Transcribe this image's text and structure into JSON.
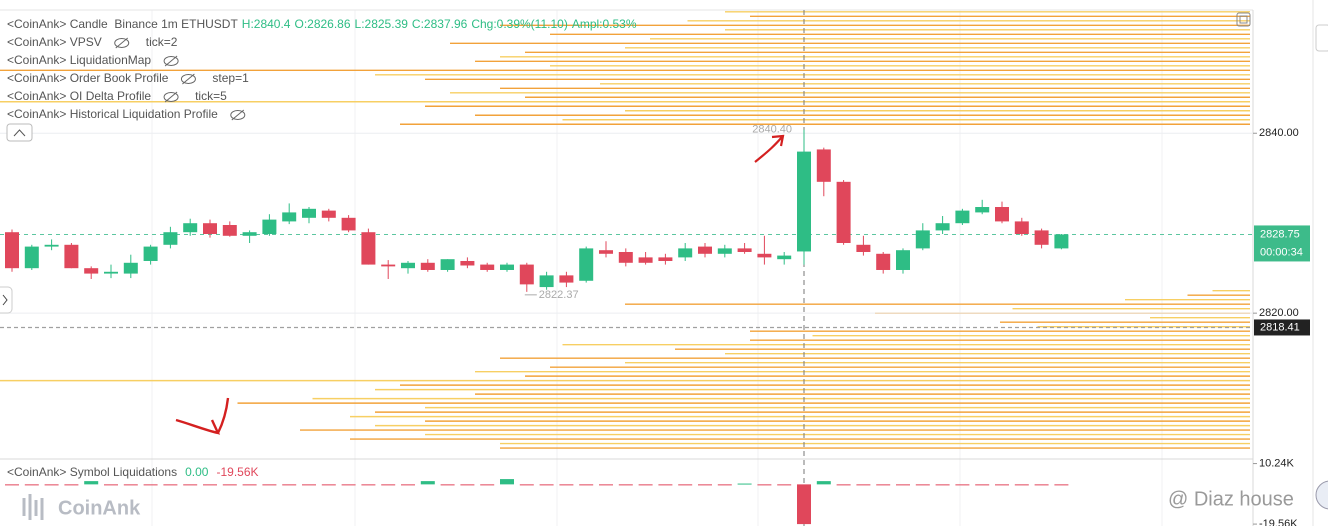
{
  "chart_data": {
    "type": "candlestick",
    "header": {
      "name": "<CoinAnk> Candle  Binance 1m ETHUSDT",
      "values": [
        "H:2840.4",
        "O:2826.86",
        "L:2825.39",
        "C:2837.96",
        "Chg:0.39%(11.10)",
        "Ampl:0.53%"
      ]
    },
    "legend": [
      {
        "text": "<CoinAnk> VPSV",
        "extra": "tick=2"
      },
      {
        "text": "<CoinAnk> LiquidationMap"
      },
      {
        "text": "<CoinAnk> Order Book Profile",
        "extra": "step=1"
      },
      {
        "text": "<CoinAnk> OI Delta Profile",
        "extra": "tick=5"
      },
      {
        "text": "<CoinAnk> Historical Liquidation Profile"
      }
    ],
    "up_color": "#2ebd85",
    "down_color": "#e0475b",
    "open": [
      2829.0,
      2825.0,
      2827.4,
      2827.6,
      2825.0,
      2824.4,
      2824.4,
      2825.8,
      2827.6,
      2829.0,
      2830.0,
      2829.8,
      2828.6,
      2828.8,
      2830.2,
      2830.6,
      2831.4,
      2830.6,
      2829.0,
      2825.4,
      2825.0,
      2825.6,
      2824.8,
      2825.8,
      2825.4,
      2824.8,
      2825.4,
      2822.9,
      2824.2,
      2823.6,
      2827.0,
      2826.8,
      2826.2,
      2826.2,
      2826.2,
      2827.4,
      2826.6,
      2827.2,
      2826.6,
      2826.0,
      2826.86,
      2838.2,
      2834.6,
      2827.6,
      2826.6,
      2824.8,
      2827.2,
      2829.2,
      2830.0,
      2831.2,
      2831.8,
      2830.2,
      2829.2,
      2827.2
    ],
    "high": [
      2829.3,
      2827.6,
      2828.2,
      2827.8,
      2825.2,
      2825.4,
      2826.5,
      2827.6,
      2829.6,
      2830.5,
      2830.4,
      2830.2,
      2829.2,
      2831.0,
      2832.2,
      2831.8,
      2831.6,
      2830.9,
      2829.4,
      2825.9,
      2825.8,
      2826.0,
      2826.0,
      2826.2,
      2825.6,
      2825.6,
      2825.6,
      2824.6,
      2824.6,
      2827.4,
      2828.0,
      2827.2,
      2826.8,
      2826.6,
      2827.8,
      2827.8,
      2827.6,
      2827.8,
      2828.6,
      2826.8,
      2840.4,
      2838.4,
      2834.8,
      2828.6,
      2826.8,
      2827.2,
      2830.0,
      2830.8,
      2831.6,
      2832.6,
      2832.4,
      2830.6,
      2829.4,
      2828.8
    ],
    "low": [
      2824.6,
      2824.8,
      2827.0,
      2825.0,
      2823.8,
      2823.9,
      2823.9,
      2825.4,
      2827.2,
      2828.6,
      2828.4,
      2828.5,
      2827.8,
      2828.6,
      2829.9,
      2830.0,
      2830.2,
      2829.0,
      2825.4,
      2823.8,
      2824.4,
      2824.6,
      2824.6,
      2825.0,
      2824.6,
      2824.6,
      2822.37,
      2822.6,
      2822.9,
      2823.4,
      2826.2,
      2825.2,
      2825.4,
      2825.4,
      2825.8,
      2826.2,
      2826.2,
      2826.6,
      2825.4,
      2825.4,
      2825.39,
      2833.0,
      2827.6,
      2826.4,
      2824.4,
      2824.4,
      2827.0,
      2828.8,
      2829.8,
      2831.0,
      2830.0,
      2828.6,
      2827.2,
      2827.1
    ],
    "close": [
      2825.0,
      2827.4,
      2827.6,
      2825.0,
      2824.4,
      2824.6,
      2825.6,
      2827.4,
      2829.0,
      2830.0,
      2828.8,
      2828.6,
      2829.0,
      2830.4,
      2831.2,
      2831.6,
      2830.6,
      2829.2,
      2825.4,
      2825.2,
      2825.6,
      2824.8,
      2826.0,
      2825.3,
      2824.8,
      2825.4,
      2823.2,
      2824.2,
      2823.4,
      2827.2,
      2826.6,
      2825.6,
      2825.6,
      2825.8,
      2827.2,
      2826.6,
      2827.2,
      2826.8,
      2826.2,
      2826.4,
      2837.96,
      2834.6,
      2827.8,
      2826.8,
      2824.8,
      2827.0,
      2829.2,
      2830.0,
      2831.4,
      2831.8,
      2830.2,
      2828.8,
      2827.6,
      2828.75
    ],
    "high_label": "2840.40",
    "low_label": "2822.37",
    "ylim": [
      2803.9,
      2853.7
    ],
    "yticks": [
      {
        "value": 2820,
        "label": "2820.00"
      },
      {
        "value": 2840,
        "label": "2840.00"
      }
    ],
    "last_price": {
      "value": 2828.75,
      "label": "2828.75"
    },
    "countdown": "00:00:34",
    "mark_price": {
      "value": 2818.41,
      "label": "2818.41"
    },
    "profile": {
      "colors": [
        "#f2a23a",
        "#f7cf63"
      ],
      "levels": [
        2805,
        2805.5,
        2806,
        2806.5,
        2807,
        2807.5,
        2808,
        2808.5,
        2809,
        2809.5,
        2810,
        2810.5,
        2811,
        2811.5,
        2812,
        2812.5,
        2813,
        2813.5,
        2814,
        2814.5,
        2815,
        2815.5,
        2816,
        2816.5,
        2817,
        2817.5,
        2818,
        2818.5,
        2819,
        2819.5,
        2820,
        2820.5,
        2821,
        2821.5,
        2822,
        2822.5,
        2841,
        2841.5,
        2842,
        2842.5,
        2843,
        2843.5,
        2844,
        2844.5,
        2845,
        2845.5,
        2846,
        2846.5,
        2847,
        2847.5,
        2848,
        2848.5,
        2849,
        2849.5,
        2850,
        2850.5,
        2851,
        2851.5,
        2852,
        2852.5,
        2853,
        2853.5
      ],
      "values": [
        0.6,
        0.6,
        0.72,
        0.66,
        0.76,
        0.7,
        0.66,
        0.72,
        0.7,
        0.66,
        0.81,
        0.75,
        0.62,
        0.7,
        0.68,
        1.0,
        0.58,
        0.62,
        0.56,
        0.5,
        0.6,
        0.42,
        0.46,
        0.55,
        0.4,
        0.35,
        0.4,
        0.17,
        0.2,
        0.08,
        0.3,
        0.19,
        0.5,
        0.1,
        0.05,
        0.03,
        0.68,
        0.55,
        0.62,
        0.5,
        0.66,
        1.0,
        0.58,
        0.64,
        0.6,
        0.52,
        0.66,
        0.7,
        1.0,
        0.56,
        0.62,
        0.6,
        0.58,
        0.5,
        0.64,
        0.48,
        0.56,
        0.42,
        0.6,
        0.45,
        0.4,
        0.42
      ]
    },
    "sub_pane": {
      "title": "<CoinAnk> Symbol Liquidations",
      "stats": [
        "0.00",
        "-19.56K"
      ],
      "ylim": [
        -20.5,
        12
      ],
      "yticks": [
        {
          "value": 10.24,
          "label": "10.24K"
        },
        {
          "value": -19.56,
          "label": "-19.56K"
        }
      ],
      "values": [
        -0.3,
        -0.3,
        -0.3,
        -0.3,
        1.6,
        -0.3,
        -0.3,
        -0.3,
        -0.3,
        -0.3,
        -0.3,
        -0.3,
        -0.3,
        -0.3,
        -0.3,
        -0.3,
        -0.3,
        -0.3,
        -0.3,
        -0.3,
        -0.3,
        1.6,
        -0.3,
        -0.3,
        -0.3,
        2.6,
        -0.3,
        -0.3,
        -0.3,
        -0.3,
        -0.3,
        -0.3,
        -0.3,
        -0.3,
        -0.3,
        -0.3,
        -0.3,
        0.4,
        -0.3,
        -0.3,
        -19.56,
        1.6,
        -0.3,
        -0.3,
        -0.3,
        -0.3,
        -0.3,
        -0.3,
        -0.3,
        -0.3,
        -0.3,
        -0.3,
        -0.3,
        -0.3
      ]
    }
  },
  "watermark": "CoinAnk",
  "credit": "@ Diaz house"
}
